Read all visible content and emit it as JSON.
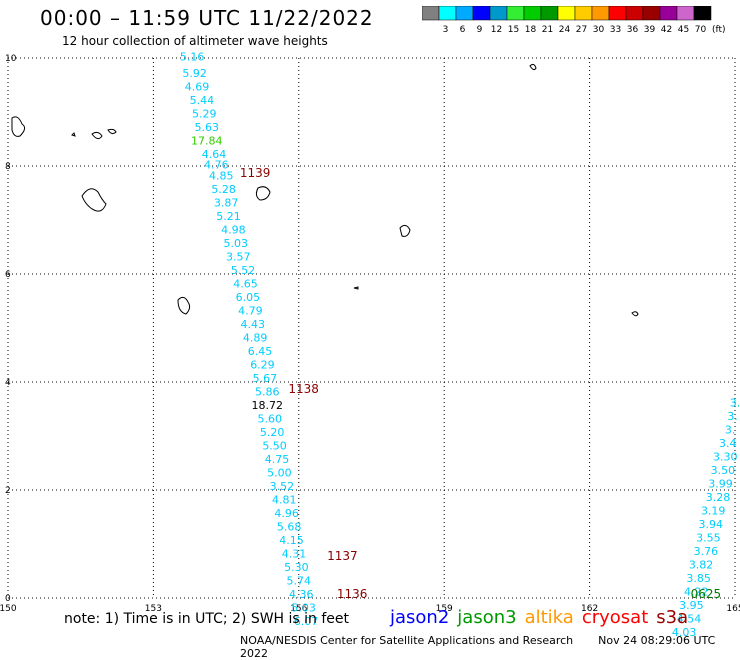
{
  "title": "00:00 – 11:59 UTC 11/22/2022",
  "subtitle": "12 hour collection of altimeter wave heights",
  "note": "note: 1) Time is in UTC; 2) SWH is in feet",
  "footer_left": "NOAA/NESDIS Center for Satellite Applications and Research",
  "footer_right": "Nov 24 08:29:06 UTC 2022",
  "satellites": [
    {
      "name": "jason2",
      "color": "#0000ff"
    },
    {
      "name": "jason3",
      "color": "#009900"
    },
    {
      "name": "altika",
      "color": "#ff9900"
    },
    {
      "name": "cryosat",
      "color": "#ff0000"
    },
    {
      "name": "s3a",
      "color": "#990000"
    }
  ],
  "color_scale": {
    "unit": "(ft)",
    "bins": [
      {
        "label": "",
        "color": "#808080"
      },
      {
        "label": "3",
        "color": "#00ffff"
      },
      {
        "label": "6",
        "color": "#00aaff"
      },
      {
        "label": "9",
        "color": "#0000ff"
      },
      {
        "label": "12",
        "color": "#0099cc"
      },
      {
        "label": "15",
        "color": "#33ee33"
      },
      {
        "label": "18",
        "color": "#00cc00"
      },
      {
        "label": "21",
        "color": "#009900"
      },
      {
        "label": "24",
        "color": "#ffff00"
      },
      {
        "label": "27",
        "color": "#ffcc00"
      },
      {
        "label": "30",
        "color": "#ff9900"
      },
      {
        "label": "33",
        "color": "#ff0000"
      },
      {
        "label": "36",
        "color": "#cc0000"
      },
      {
        "label": "39",
        "color": "#990000"
      },
      {
        "label": "42",
        "color": "#990099"
      },
      {
        "label": "45",
        "color": "#cc66cc"
      },
      {
        "label": "70",
        "color": "#000000"
      }
    ]
  },
  "axes": {
    "lon_ticks": [
      "150",
      "153",
      "156",
      "159",
      "162",
      "165"
    ],
    "lat_ticks": [
      "0",
      "2",
      "4",
      "6",
      "8",
      "10"
    ]
  },
  "pass_labels": [
    {
      "text": "1139",
      "lon": 155.1,
      "lat": 7.8
    },
    {
      "text": "1138",
      "lon": 156.1,
      "lat": 3.8
    },
    {
      "text": "1137",
      "lon": 156.9,
      "lat": 0.7
    },
    {
      "text": "1136",
      "lon": 157.1,
      "lat": 0.0
    },
    {
      "text": "0625",
      "lon": 164.4,
      "lat": 0.0
    }
  ],
  "track1": {
    "color_default": "#00ccff",
    "points": [
      {
        "v": "5.16",
        "lon": 153.8,
        "lat": 9.95
      },
      {
        "v": "5.92",
        "lon": 153.85,
        "lat": 9.65
      },
      {
        "v": "4.69",
        "lon": 153.9,
        "lat": 9.4
      },
      {
        "v": "5.44",
        "lon": 154.0,
        "lat": 9.15
      },
      {
        "v": "5.29",
        "lon": 154.05,
        "lat": 8.9
      },
      {
        "v": "5.63",
        "lon": 154.1,
        "lat": 8.65
      },
      {
        "v": "17.84",
        "lon": 154.1,
        "lat": 8.4,
        "c": "#33cc00"
      },
      {
        "v": "4.64",
        "lon": 154.25,
        "lat": 8.15
      },
      {
        "v": "4.76",
        "lon": 154.3,
        "lat": 7.95
      },
      {
        "v": "4.85",
        "lon": 154.4,
        "lat": 7.75
      },
      {
        "v": "5.28",
        "lon": 154.45,
        "lat": 7.5
      },
      {
        "v": "3.87",
        "lon": 154.5,
        "lat": 7.25
      },
      {
        "v": "5.21",
        "lon": 154.55,
        "lat": 7.0
      },
      {
        "v": "4.98",
        "lon": 154.65,
        "lat": 6.75
      },
      {
        "v": "5.03",
        "lon": 154.7,
        "lat": 6.5
      },
      {
        "v": "3.57",
        "lon": 154.75,
        "lat": 6.25
      },
      {
        "v": "5.52",
        "lon": 154.85,
        "lat": 6.0
      },
      {
        "v": "4.65",
        "lon": 154.9,
        "lat": 5.75
      },
      {
        "v": "6.05",
        "lon": 154.95,
        "lat": 5.5
      },
      {
        "v": "4.79",
        "lon": 155.0,
        "lat": 5.25
      },
      {
        "v": "4.43",
        "lon": 155.05,
        "lat": 5.0
      },
      {
        "v": "4.89",
        "lon": 155.1,
        "lat": 4.75
      },
      {
        "v": "6.45",
        "lon": 155.2,
        "lat": 4.5
      },
      {
        "v": "6.29",
        "lon": 155.25,
        "lat": 4.25
      },
      {
        "v": "5.67",
        "lon": 155.3,
        "lat": 4.0
      },
      {
        "v": "5.86",
        "lon": 155.35,
        "lat": 3.75
      },
      {
        "v": "18.72",
        "lon": 155.35,
        "lat": 3.5,
        "c": "#000000"
      },
      {
        "v": "5.60",
        "lon": 155.4,
        "lat": 3.25
      },
      {
        "v": "5.20",
        "lon": 155.45,
        "lat": 3.0
      },
      {
        "v": "5.50",
        "lon": 155.5,
        "lat": 2.75
      },
      {
        "v": "4.75",
        "lon": 155.55,
        "lat": 2.5
      },
      {
        "v": "5.00",
        "lon": 155.6,
        "lat": 2.25
      },
      {
        "v": "3.52",
        "lon": 155.65,
        "lat": 2.0
      },
      {
        "v": "4.81",
        "lon": 155.7,
        "lat": 1.75
      },
      {
        "v": "4.96",
        "lon": 155.75,
        "lat": 1.5
      },
      {
        "v": "5.68",
        "lon": 155.8,
        "lat": 1.25
      },
      {
        "v": "4.15",
        "lon": 155.85,
        "lat": 1.0
      },
      {
        "v": "4.31",
        "lon": 155.9,
        "lat": 0.75
      },
      {
        "v": "5.30",
        "lon": 155.95,
        "lat": 0.5
      },
      {
        "v": "5.74",
        "lon": 156.0,
        "lat": 0.25
      },
      {
        "v": "4.36",
        "lon": 156.05,
        "lat": 0.0
      },
      {
        "v": "5.03",
        "lon": 156.1,
        "lat": -0.25
      },
      {
        "v": "6.07",
        "lon": 156.15,
        "lat": -0.5
      }
    ]
  },
  "track2": {
    "color_default": "#00ccff",
    "points": [
      {
        "v": "3.",
        "lon": 165.0,
        "lat": 3.55
      },
      {
        "v": "3.",
        "lon": 164.95,
        "lat": 3.3
      },
      {
        "v": "3.",
        "lon": 164.9,
        "lat": 3.05
      },
      {
        "v": "3.4",
        "lon": 164.85,
        "lat": 2.8
      },
      {
        "v": "3.30",
        "lon": 164.8,
        "lat": 2.55
      },
      {
        "v": "3.50",
        "lon": 164.75,
        "lat": 2.3
      },
      {
        "v": "3.99",
        "lon": 164.7,
        "lat": 2.05
      },
      {
        "v": "3.28",
        "lon": 164.65,
        "lat": 1.8
      },
      {
        "v": "3.19",
        "lon": 164.55,
        "lat": 1.55
      },
      {
        "v": "3.94",
        "lon": 164.5,
        "lat": 1.3
      },
      {
        "v": "3.55",
        "lon": 164.45,
        "lat": 1.05
      },
      {
        "v": "3.76",
        "lon": 164.4,
        "lat": 0.8
      },
      {
        "v": "3.82",
        "lon": 164.3,
        "lat": 0.55
      },
      {
        "v": "3.85",
        "lon": 164.25,
        "lat": 0.3
      },
      {
        "v": "4.22",
        "lon": 164.2,
        "lat": 0.05
      },
      {
        "v": "3.95",
        "lon": 164.1,
        "lat": -0.2
      },
      {
        "v": "4.54",
        "lon": 164.05,
        "lat": -0.45
      },
      {
        "v": "4.03",
        "lon": 163.95,
        "lat": -0.7
      }
    ]
  }
}
